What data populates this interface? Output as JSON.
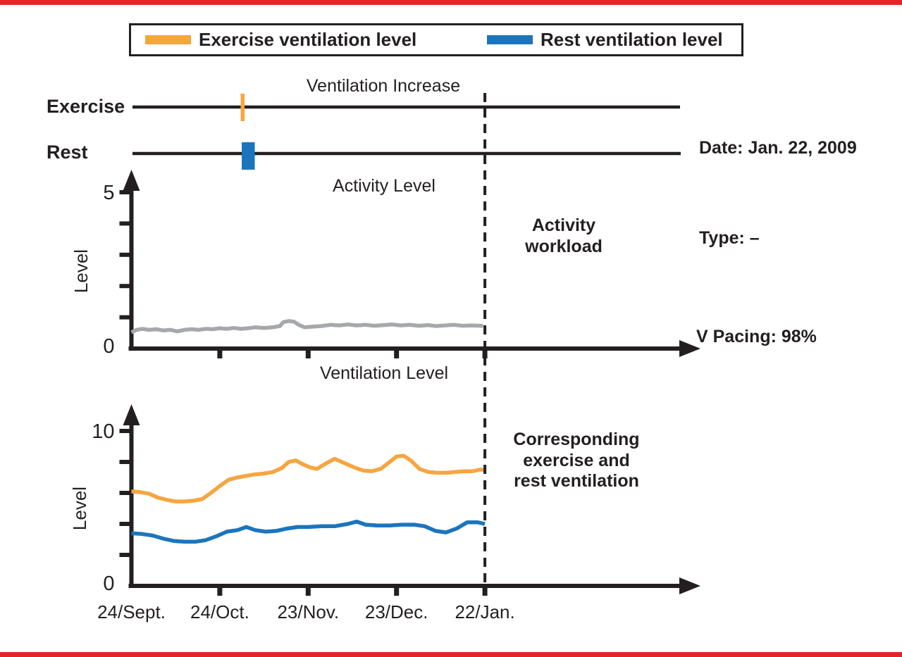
{
  "style": {
    "border_color": "#E3242B",
    "line_color": "#231F20",
    "exercise_color": "#F6A540",
    "rest_color": "#1C75BC",
    "activity_color": "#A6A8AB"
  },
  "legend": {
    "items": [
      {
        "label": "Exercise ventilation level",
        "color": "#F6A540"
      },
      {
        "label": "Rest ventilation level",
        "color": "#1C75BC"
      }
    ]
  },
  "ventilation_increase": {
    "title": "Ventilation Increase",
    "rows": [
      {
        "label": "Exercise",
        "marker_month": 1.26
      },
      {
        "label": "Rest",
        "marker_month": 1.32
      }
    ]
  },
  "info_panel": {
    "date": "Date: Jan. 22, 2009",
    "type": "Type: –",
    "v_pacing": "V Pacing: 98%"
  },
  "annotations": {
    "activity_workload": "Activity\nworkload",
    "corresponding": "Corresponding\nexercise and\nrest ventilation"
  },
  "chart_data": [
    {
      "type": "line",
      "title": "Activity Level",
      "ylabel": "Level",
      "ylim": [
        0,
        5
      ],
      "yticks": [
        1,
        2,
        3,
        4,
        5
      ],
      "yticks_labeled": [
        5,
        0
      ],
      "xtick_months": [
        1,
        2,
        3,
        4
      ],
      "x_categories": [
        "24/Sept.",
        "24/Oct.",
        "23/Nov.",
        "23/Dec.",
        "22/Jan."
      ],
      "show_x_labels": false,
      "grid": false,
      "series": [
        {
          "name": "Activity workload",
          "color": "#A6A8AB",
          "x": [
            0.0,
            0.06,
            0.12,
            0.2,
            0.28,
            0.36,
            0.44,
            0.52,
            0.6,
            0.68,
            0.76,
            0.84,
            0.92,
            1.0,
            1.08,
            1.16,
            1.24,
            1.32,
            1.4,
            1.5,
            1.6,
            1.68,
            1.72,
            1.78,
            1.84,
            1.9,
            1.96,
            2.05,
            2.15,
            2.25,
            2.35,
            2.45,
            2.55,
            2.65,
            2.75,
            2.85,
            2.95,
            3.05,
            3.15,
            3.25,
            3.35,
            3.45,
            3.55,
            3.65,
            3.75,
            3.85,
            3.95,
            3.98
          ],
          "values": [
            0.52,
            0.6,
            0.63,
            0.6,
            0.62,
            0.58,
            0.6,
            0.55,
            0.6,
            0.62,
            0.6,
            0.63,
            0.62,
            0.65,
            0.63,
            0.66,
            0.63,
            0.65,
            0.68,
            0.66,
            0.68,
            0.72,
            0.85,
            0.88,
            0.86,
            0.75,
            0.68,
            0.7,
            0.72,
            0.76,
            0.74,
            0.77,
            0.74,
            0.76,
            0.73,
            0.75,
            0.77,
            0.74,
            0.76,
            0.73,
            0.75,
            0.72,
            0.74,
            0.76,
            0.73,
            0.74,
            0.73,
            0.73
          ]
        }
      ]
    },
    {
      "type": "line",
      "title": "Ventilation Level",
      "ylabel": "Level",
      "ylim": [
        0,
        10
      ],
      "yticks": [
        2,
        4,
        6,
        8,
        10
      ],
      "yticks_labeled": [
        10,
        0
      ],
      "xtick_months": [
        1,
        2,
        3,
        4
      ],
      "x_categories": [
        "24/Sept.",
        "24/Oct.",
        "23/Nov.",
        "23/Dec.",
        "22/Jan."
      ],
      "show_x_labels": true,
      "grid": false,
      "series": [
        {
          "name": "Exercise ventilation level",
          "color": "#F6A540",
          "x": [
            0.0,
            0.1,
            0.2,
            0.3,
            0.4,
            0.5,
            0.6,
            0.7,
            0.8,
            0.9,
            1.0,
            1.1,
            1.2,
            1.3,
            1.4,
            1.5,
            1.6,
            1.7,
            1.78,
            1.86,
            1.94,
            2.02,
            2.1,
            2.2,
            2.3,
            2.42,
            2.52,
            2.62,
            2.72,
            2.82,
            2.9,
            3.0,
            3.08,
            3.16,
            3.26,
            3.36,
            3.46,
            3.56,
            3.66,
            3.76,
            3.86,
            3.94,
            4.0
          ],
          "values": [
            6.1,
            6.05,
            5.95,
            5.7,
            5.55,
            5.45,
            5.45,
            5.5,
            5.6,
            6.0,
            6.45,
            6.85,
            7.0,
            7.1,
            7.2,
            7.25,
            7.35,
            7.6,
            8.0,
            8.1,
            7.85,
            7.65,
            7.55,
            7.9,
            8.2,
            7.9,
            7.65,
            7.45,
            7.4,
            7.55,
            7.9,
            8.35,
            8.4,
            8.1,
            7.55,
            7.35,
            7.3,
            7.3,
            7.35,
            7.4,
            7.4,
            7.5,
            7.5
          ]
        },
        {
          "name": "Rest ventilation level",
          "color": "#1C75BC",
          "x": [
            0.0,
            0.12,
            0.24,
            0.36,
            0.48,
            0.6,
            0.72,
            0.84,
            0.96,
            1.08,
            1.2,
            1.3,
            1.4,
            1.52,
            1.64,
            1.76,
            1.88,
            2.0,
            2.15,
            2.3,
            2.45,
            2.55,
            2.65,
            2.78,
            2.92,
            3.06,
            3.2,
            3.32,
            3.44,
            3.56,
            3.68,
            3.8,
            3.92,
            4.0
          ],
          "values": [
            3.4,
            3.35,
            3.25,
            3.05,
            2.9,
            2.85,
            2.85,
            2.95,
            3.2,
            3.5,
            3.6,
            3.8,
            3.6,
            3.5,
            3.55,
            3.7,
            3.8,
            3.8,
            3.85,
            3.85,
            4.0,
            4.15,
            3.95,
            3.9,
            3.9,
            3.95,
            3.95,
            3.85,
            3.55,
            3.45,
            3.7,
            4.1,
            4.1,
            4.0
          ]
        }
      ]
    }
  ]
}
